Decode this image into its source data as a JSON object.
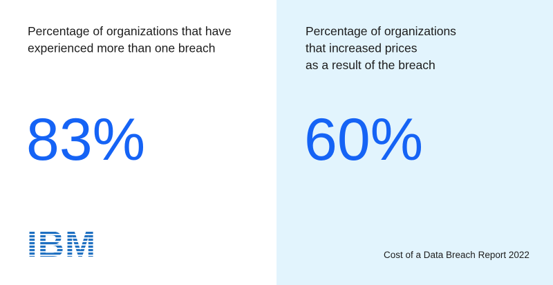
{
  "panels": [
    {
      "description": [
        "Percentage of organizations that have",
        "experienced more than one breach"
      ],
      "stat": "83%"
    },
    {
      "description": [
        "Percentage of organizations",
        "that increased prices",
        "as a result of the breach"
      ],
      "stat": "60%"
    }
  ],
  "logo": "IBM",
  "footer": "Cost of a Data Breach Report 2022"
}
